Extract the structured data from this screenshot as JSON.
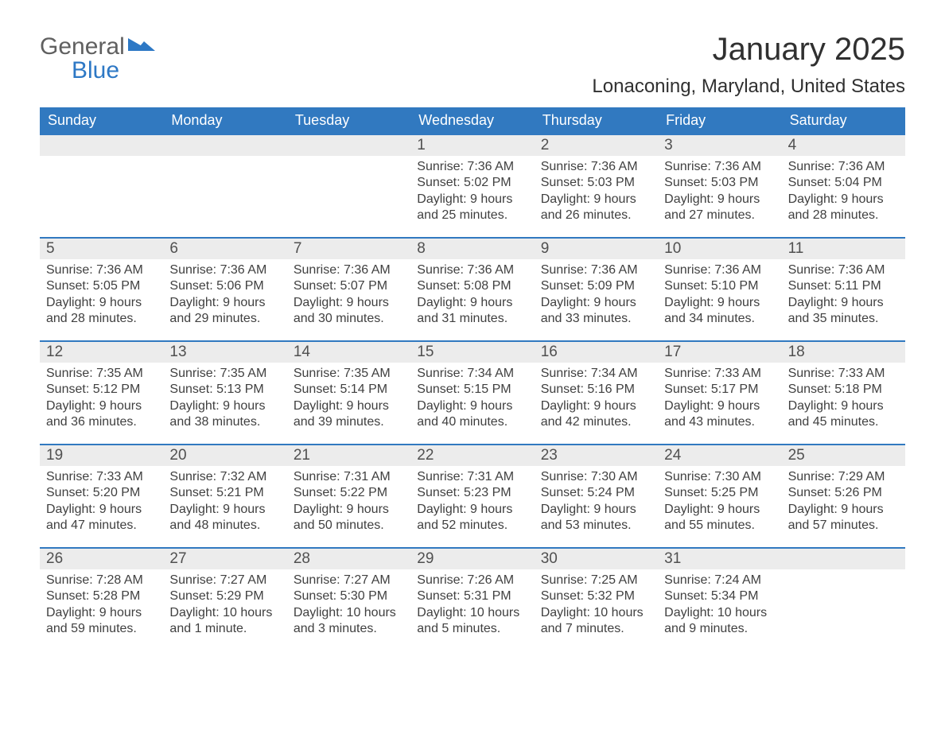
{
  "brand": {
    "part1": "General",
    "part2": "Blue"
  },
  "title": "January 2025",
  "location": "Lonaconing, Maryland, United States",
  "colors": {
    "header_bg": "#3179c0",
    "header_text": "#ffffff",
    "daynum_bg": "#ececec",
    "text": "#404040",
    "row_border": "#3179c0",
    "brand_blue": "#2d78c5",
    "brand_gray": "#606060",
    "background": "#ffffff"
  },
  "typography": {
    "title_fontsize": 40,
    "location_fontsize": 24,
    "dow_fontsize": 18,
    "daynum_fontsize": 19,
    "body_fontsize": 16,
    "font_family": "Arial"
  },
  "layout": {
    "columns": 7,
    "rows": 5,
    "cell_min_height": 128
  },
  "days_of_week": [
    "Sunday",
    "Monday",
    "Tuesday",
    "Wednesday",
    "Thursday",
    "Friday",
    "Saturday"
  ],
  "weeks": [
    [
      {
        "n": "",
        "sr": "",
        "ss": "",
        "d1": "",
        "d2": ""
      },
      {
        "n": "",
        "sr": "",
        "ss": "",
        "d1": "",
        "d2": ""
      },
      {
        "n": "",
        "sr": "",
        "ss": "",
        "d1": "",
        "d2": ""
      },
      {
        "n": "1",
        "sr": "Sunrise: 7:36 AM",
        "ss": "Sunset: 5:02 PM",
        "d1": "Daylight: 9 hours",
        "d2": "and 25 minutes."
      },
      {
        "n": "2",
        "sr": "Sunrise: 7:36 AM",
        "ss": "Sunset: 5:03 PM",
        "d1": "Daylight: 9 hours",
        "d2": "and 26 minutes."
      },
      {
        "n": "3",
        "sr": "Sunrise: 7:36 AM",
        "ss": "Sunset: 5:03 PM",
        "d1": "Daylight: 9 hours",
        "d2": "and 27 minutes."
      },
      {
        "n": "4",
        "sr": "Sunrise: 7:36 AM",
        "ss": "Sunset: 5:04 PM",
        "d1": "Daylight: 9 hours",
        "d2": "and 28 minutes."
      }
    ],
    [
      {
        "n": "5",
        "sr": "Sunrise: 7:36 AM",
        "ss": "Sunset: 5:05 PM",
        "d1": "Daylight: 9 hours",
        "d2": "and 28 minutes."
      },
      {
        "n": "6",
        "sr": "Sunrise: 7:36 AM",
        "ss": "Sunset: 5:06 PM",
        "d1": "Daylight: 9 hours",
        "d2": "and 29 minutes."
      },
      {
        "n": "7",
        "sr": "Sunrise: 7:36 AM",
        "ss": "Sunset: 5:07 PM",
        "d1": "Daylight: 9 hours",
        "d2": "and 30 minutes."
      },
      {
        "n": "8",
        "sr": "Sunrise: 7:36 AM",
        "ss": "Sunset: 5:08 PM",
        "d1": "Daylight: 9 hours",
        "d2": "and 31 minutes."
      },
      {
        "n": "9",
        "sr": "Sunrise: 7:36 AM",
        "ss": "Sunset: 5:09 PM",
        "d1": "Daylight: 9 hours",
        "d2": "and 33 minutes."
      },
      {
        "n": "10",
        "sr": "Sunrise: 7:36 AM",
        "ss": "Sunset: 5:10 PM",
        "d1": "Daylight: 9 hours",
        "d2": "and 34 minutes."
      },
      {
        "n": "11",
        "sr": "Sunrise: 7:36 AM",
        "ss": "Sunset: 5:11 PM",
        "d1": "Daylight: 9 hours",
        "d2": "and 35 minutes."
      }
    ],
    [
      {
        "n": "12",
        "sr": "Sunrise: 7:35 AM",
        "ss": "Sunset: 5:12 PM",
        "d1": "Daylight: 9 hours",
        "d2": "and 36 minutes."
      },
      {
        "n": "13",
        "sr": "Sunrise: 7:35 AM",
        "ss": "Sunset: 5:13 PM",
        "d1": "Daylight: 9 hours",
        "d2": "and 38 minutes."
      },
      {
        "n": "14",
        "sr": "Sunrise: 7:35 AM",
        "ss": "Sunset: 5:14 PM",
        "d1": "Daylight: 9 hours",
        "d2": "and 39 minutes."
      },
      {
        "n": "15",
        "sr": "Sunrise: 7:34 AM",
        "ss": "Sunset: 5:15 PM",
        "d1": "Daylight: 9 hours",
        "d2": "and 40 minutes."
      },
      {
        "n": "16",
        "sr": "Sunrise: 7:34 AM",
        "ss": "Sunset: 5:16 PM",
        "d1": "Daylight: 9 hours",
        "d2": "and 42 minutes."
      },
      {
        "n": "17",
        "sr": "Sunrise: 7:33 AM",
        "ss": "Sunset: 5:17 PM",
        "d1": "Daylight: 9 hours",
        "d2": "and 43 minutes."
      },
      {
        "n": "18",
        "sr": "Sunrise: 7:33 AM",
        "ss": "Sunset: 5:18 PM",
        "d1": "Daylight: 9 hours",
        "d2": "and 45 minutes."
      }
    ],
    [
      {
        "n": "19",
        "sr": "Sunrise: 7:33 AM",
        "ss": "Sunset: 5:20 PM",
        "d1": "Daylight: 9 hours",
        "d2": "and 47 minutes."
      },
      {
        "n": "20",
        "sr": "Sunrise: 7:32 AM",
        "ss": "Sunset: 5:21 PM",
        "d1": "Daylight: 9 hours",
        "d2": "and 48 minutes."
      },
      {
        "n": "21",
        "sr": "Sunrise: 7:31 AM",
        "ss": "Sunset: 5:22 PM",
        "d1": "Daylight: 9 hours",
        "d2": "and 50 minutes."
      },
      {
        "n": "22",
        "sr": "Sunrise: 7:31 AM",
        "ss": "Sunset: 5:23 PM",
        "d1": "Daylight: 9 hours",
        "d2": "and 52 minutes."
      },
      {
        "n": "23",
        "sr": "Sunrise: 7:30 AM",
        "ss": "Sunset: 5:24 PM",
        "d1": "Daylight: 9 hours",
        "d2": "and 53 minutes."
      },
      {
        "n": "24",
        "sr": "Sunrise: 7:30 AM",
        "ss": "Sunset: 5:25 PM",
        "d1": "Daylight: 9 hours",
        "d2": "and 55 minutes."
      },
      {
        "n": "25",
        "sr": "Sunrise: 7:29 AM",
        "ss": "Sunset: 5:26 PM",
        "d1": "Daylight: 9 hours",
        "d2": "and 57 minutes."
      }
    ],
    [
      {
        "n": "26",
        "sr": "Sunrise: 7:28 AM",
        "ss": "Sunset: 5:28 PM",
        "d1": "Daylight: 9 hours",
        "d2": "and 59 minutes."
      },
      {
        "n": "27",
        "sr": "Sunrise: 7:27 AM",
        "ss": "Sunset: 5:29 PM",
        "d1": "Daylight: 10 hours",
        "d2": "and 1 minute."
      },
      {
        "n": "28",
        "sr": "Sunrise: 7:27 AM",
        "ss": "Sunset: 5:30 PM",
        "d1": "Daylight: 10 hours",
        "d2": "and 3 minutes."
      },
      {
        "n": "29",
        "sr": "Sunrise: 7:26 AM",
        "ss": "Sunset: 5:31 PM",
        "d1": "Daylight: 10 hours",
        "d2": "and 5 minutes."
      },
      {
        "n": "30",
        "sr": "Sunrise: 7:25 AM",
        "ss": "Sunset: 5:32 PM",
        "d1": "Daylight: 10 hours",
        "d2": "and 7 minutes."
      },
      {
        "n": "31",
        "sr": "Sunrise: 7:24 AM",
        "ss": "Sunset: 5:34 PM",
        "d1": "Daylight: 10 hours",
        "d2": "and 9 minutes."
      },
      {
        "n": "",
        "sr": "",
        "ss": "",
        "d1": "",
        "d2": ""
      }
    ]
  ]
}
